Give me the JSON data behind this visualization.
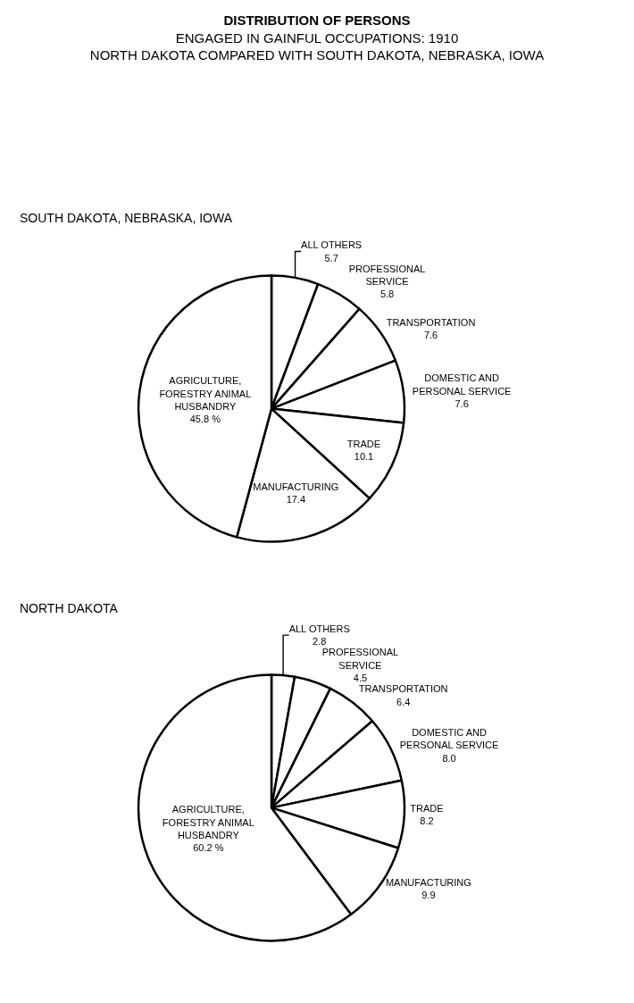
{
  "chart_data": [
    {
      "type": "pie",
      "title": "DISTRIBUTION OF PERSONS",
      "subtitle": "ENGAGED IN GAINFUL OCCUPATIONS: 1910",
      "annotations": [
        "NORTH DAKOTA COMPARED WITH SOUTH DAKOTA, NEBRASKA, IOWA",
        "SOUTH DAKOTA, NEBRASKA, IOWA"
      ],
      "categories": [
        "ALL OTHERS",
        "PROFESSIONAL SERVICE",
        "TRANSPORTATION",
        "DOMESTIC AND PERSONAL SERVICE",
        "TRADE",
        "MANUFACTURING",
        "AGRICULTURE, FORESTRY ANIMAL HUSBANDRY"
      ],
      "values": [
        5.7,
        5.8,
        7.6,
        7.6,
        10.1,
        17.4,
        45.8
      ],
      "value_labels": [
        "5.7",
        "5.8",
        "7.6",
        "7.6",
        "10.1",
        "17.4",
        "45.8 %"
      ],
      "colors": [
        "#ffffff",
        "#ffffff",
        "#ffffff",
        "#ffffff",
        "#ffffff",
        "#ffffff",
        "#ffffff"
      ],
      "legend": false
    },
    {
      "type": "pie",
      "annotations": [
        "NORTH DAKOTA"
      ],
      "categories": [
        "ALL OTHERS",
        "PROFESSIONAL SERVICE",
        "TRANSPORTATION",
        "DOMESTIC AND PERSONAL SERVICE",
        "TRADE",
        "MANUFACTURING",
        "AGRICULTURE, FORESTRY ANIMAL HUSBANDRY"
      ],
      "values": [
        2.8,
        4.5,
        6.4,
        8.0,
        8.2,
        9.9,
        60.2
      ],
      "value_labels": [
        "2.8",
        "4.5",
        "6.4",
        "8.0",
        "8.2",
        "9.9",
        "60.2 %"
      ],
      "colors": [
        "#ffffff",
        "#ffffff",
        "#ffffff",
        "#ffffff",
        "#ffffff",
        "#ffffff",
        "#ffffff"
      ],
      "legend": false
    }
  ]
}
